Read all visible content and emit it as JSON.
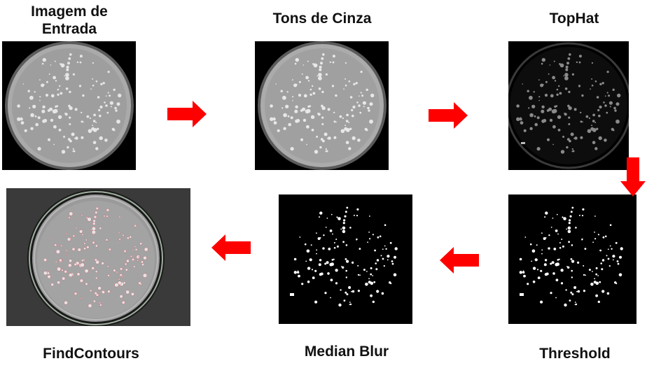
{
  "pipeline": {
    "steps": [
      {
        "label": "Imagem de\nEntrada"
      },
      {
        "label": "Tons de Cinza"
      },
      {
        "label": "TopHat"
      },
      {
        "label": "Threshold"
      },
      {
        "label": "Median Blur"
      },
      {
        "label": "FindContours"
      }
    ]
  },
  "colors": {
    "arrow": "#ff0000",
    "background": "#ffffff",
    "text": "#111111"
  }
}
